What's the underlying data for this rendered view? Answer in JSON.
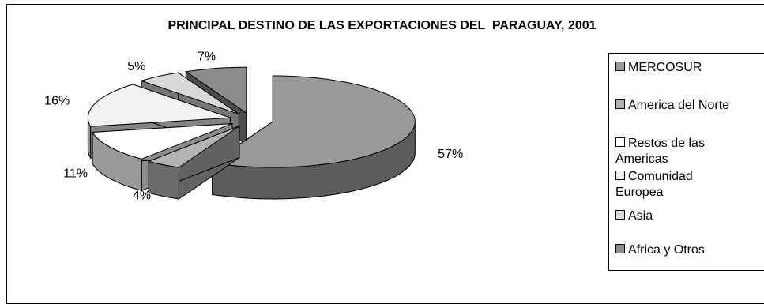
{
  "chart_data": {
    "type": "pie",
    "title": "PRINCIPAL DESTINO DE LAS EXPORTACIONES DEL  PARAGUAY, 2001",
    "three_d": true,
    "exploded": true,
    "legend_position": "right",
    "slices": [
      {
        "name": "MERCOSUR",
        "value": 57,
        "label": "57%",
        "color": "#999999"
      },
      {
        "name": "America del Norte",
        "value": 4,
        "label": "4%",
        "color": "#b3b3b3"
      },
      {
        "name": "Restos de las Americas",
        "value": 11,
        "label": "11%",
        "color": "#ffffff"
      },
      {
        "name": "Comunidad Europea",
        "value": 16,
        "label": "16%",
        "color": "#f2f2f2"
      },
      {
        "name": "Asia",
        "value": 5,
        "label": "5%",
        "color": "#d9d9d9"
      },
      {
        "name": "Africa y Otros",
        "value": 7,
        "label": "7%",
        "color": "#8c8c8c"
      }
    ]
  },
  "legend": {
    "items": [
      {
        "label": "MERCOSUR"
      },
      {
        "label": "America del Norte"
      },
      {
        "label": "Restos de las\nAmericas"
      },
      {
        "label": "Comunidad\nEuropea"
      },
      {
        "label": "Asia"
      },
      {
        "label": "Africa y Otros"
      }
    ]
  }
}
